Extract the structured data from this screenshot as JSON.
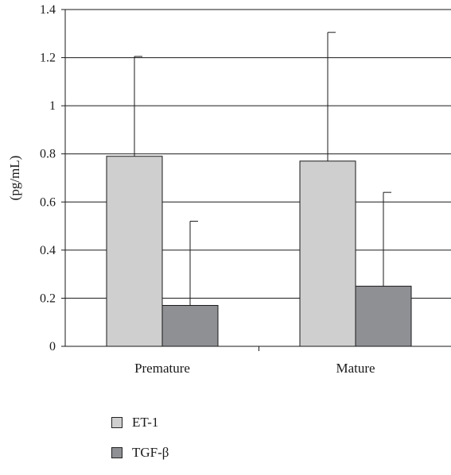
{
  "chart_data": {
    "type": "bar",
    "categories": [
      "Premature",
      "Mature"
    ],
    "series": [
      {
        "name": "ET-1",
        "values": [
          0.79,
          0.77
        ],
        "error": [
          0.415,
          0.535
        ],
        "color": "#cfcfcf"
      },
      {
        "name": "TGF-β",
        "values": [
          0.17,
          0.25
        ],
        "error": [
          0.35,
          0.39
        ],
        "color": "#8f9094"
      }
    ],
    "ylabel": "(pg/mL)",
    "xlabel": "",
    "ylim": [
      0,
      1.4
    ],
    "yticks": [
      0,
      0.2,
      0.4,
      0.6,
      0.8,
      1,
      1.2,
      1.4
    ],
    "ytick_labels": [
      "0",
      "0.2",
      "0.4",
      "0.6",
      "0.8",
      "1",
      "1.2",
      "1.4"
    ],
    "grid": true,
    "legend_position": "bottom-left"
  }
}
